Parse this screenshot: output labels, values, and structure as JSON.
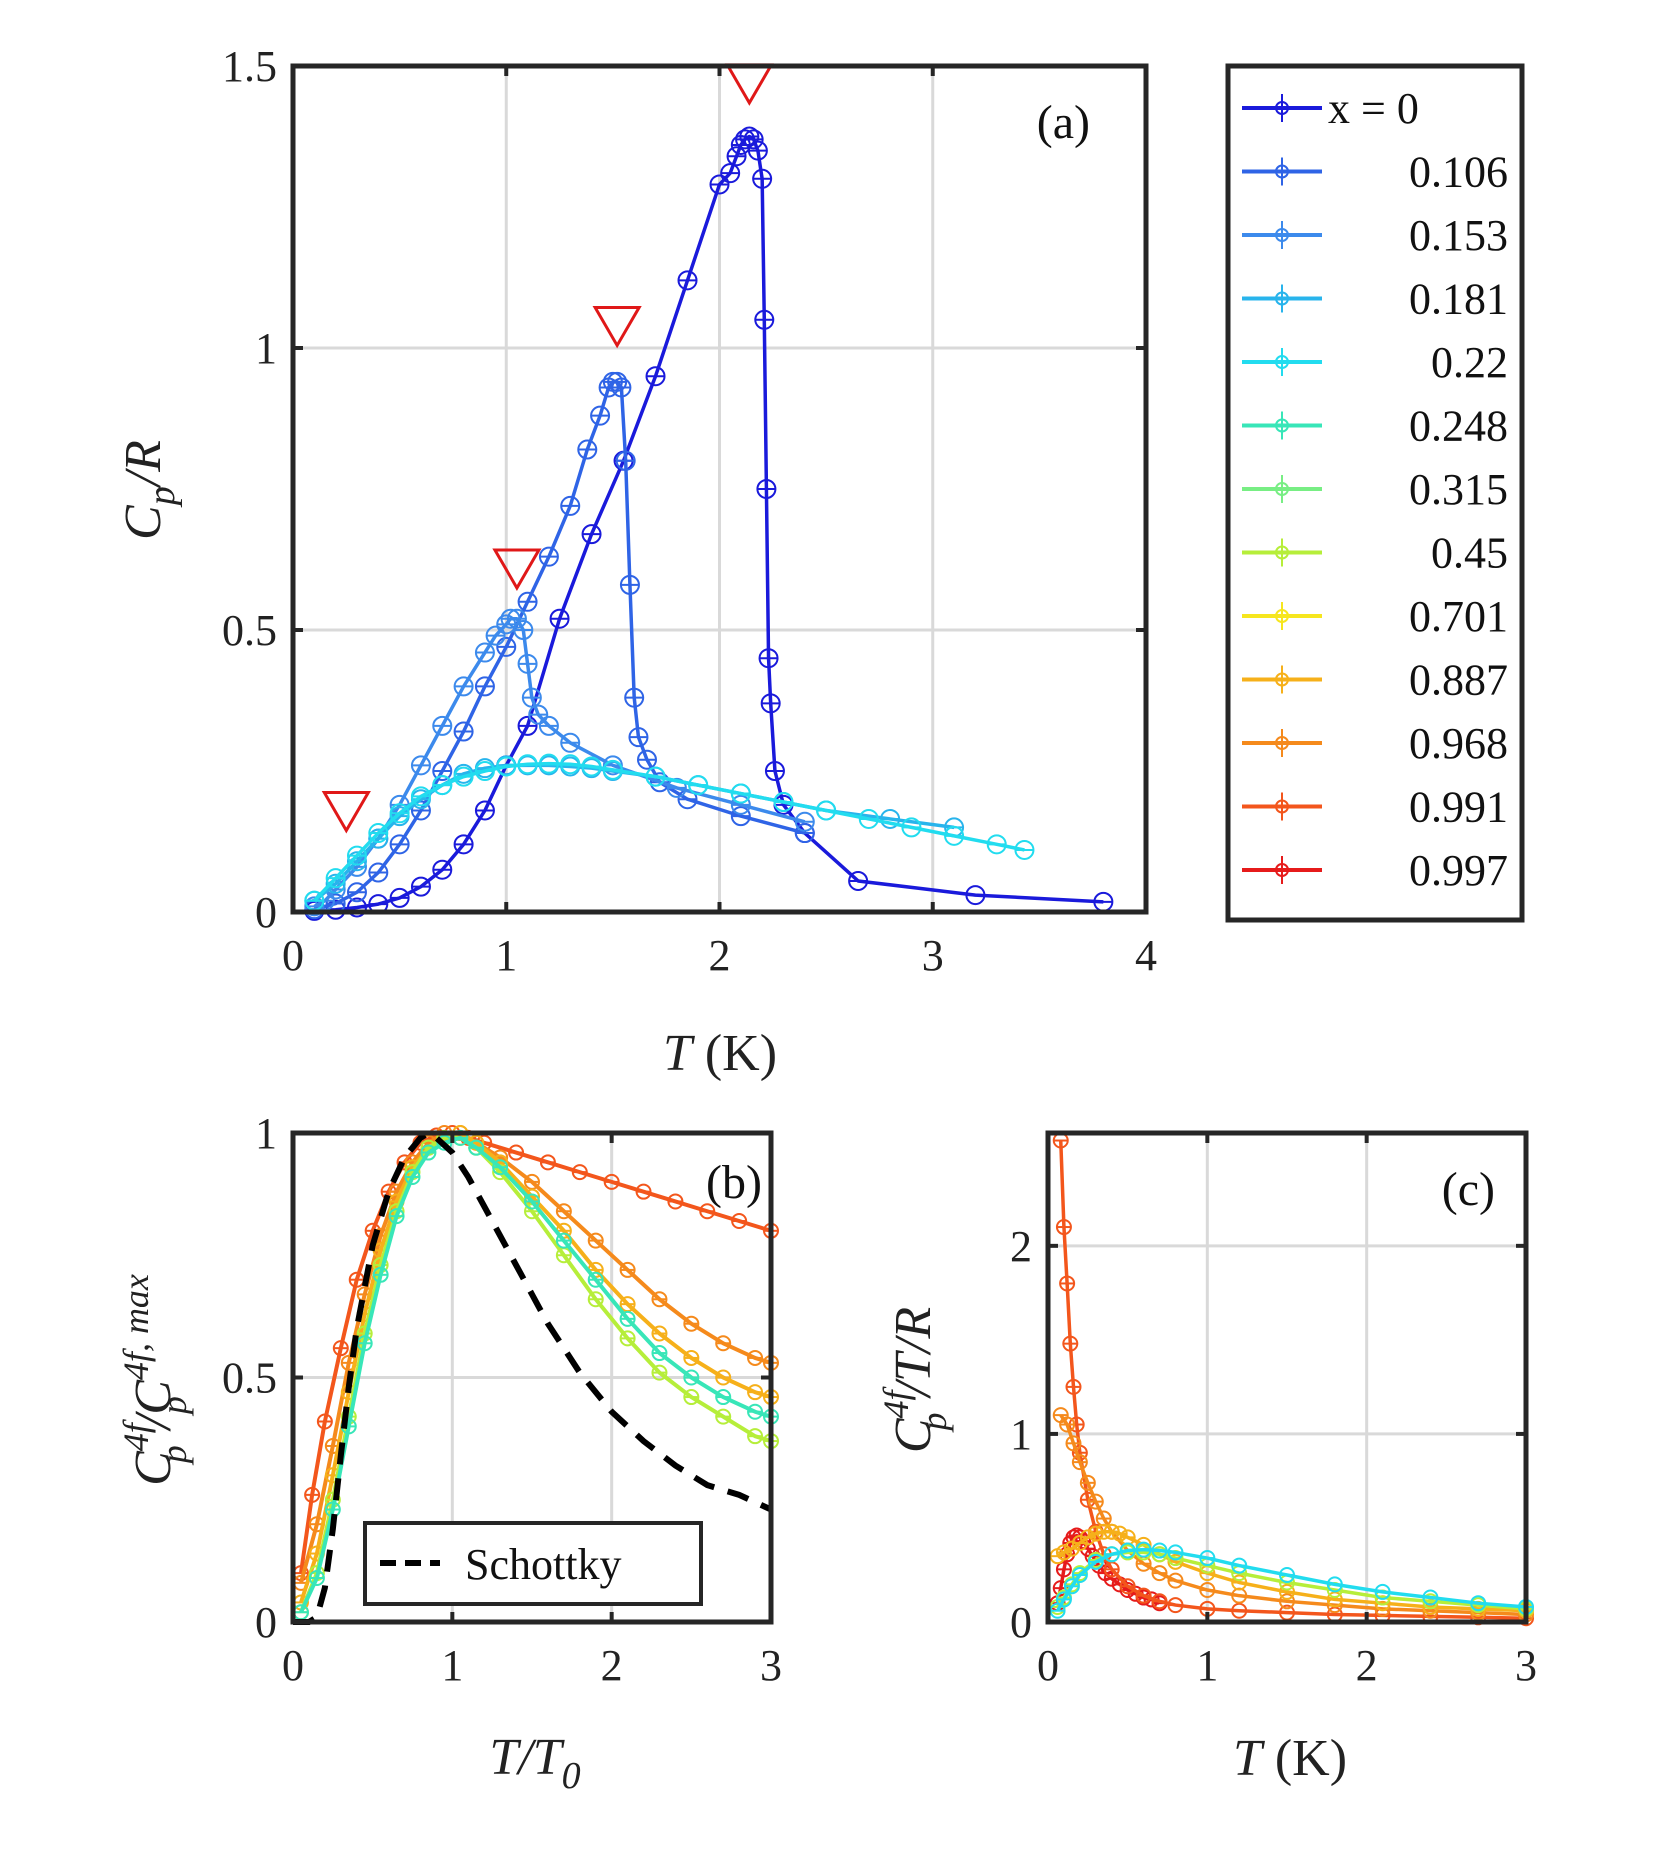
{
  "chart_data": [
    {
      "panel": "a",
      "type": "line",
      "tag": "(a)",
      "xlabel_var": "T",
      "xlabel_unit": " (K)",
      "ylabel_main": "C",
      "ylabel_sub": "p",
      "ylabel_rest": "/R",
      "xlim": [
        0,
        4
      ],
      "ylim": [
        0,
        1.5
      ],
      "xticks": [
        "0",
        "1",
        "2",
        "3",
        "4"
      ],
      "yticks": [
        "0",
        "0.5",
        "1",
        "1.5"
      ],
      "markers": [
        {
          "x": 0.25,
          "y": 0.18
        },
        {
          "x": 1.05,
          "y": 0.61
        },
        {
          "x": 1.52,
          "y": 1.04
        },
        {
          "x": 2.14,
          "y": 1.47
        }
      ],
      "series": [
        {
          "name": "x = 0",
          "color": "#1a1adb",
          "x": [
            0.1,
            0.2,
            0.3,
            0.4,
            0.5,
            0.6,
            0.7,
            0.8,
            0.9,
            1.0,
            1.1,
            1.25,
            1.4,
            1.55,
            1.7,
            1.85,
            2.0,
            2.05,
            2.08,
            2.1,
            2.12,
            2.14,
            2.16,
            2.18,
            2.2,
            2.21,
            2.22,
            2.23,
            2.24,
            2.26,
            2.3,
            2.4,
            2.65,
            3.2,
            3.8
          ],
          "y": [
            0.002,
            0.004,
            0.008,
            0.014,
            0.025,
            0.045,
            0.075,
            0.12,
            0.18,
            0.26,
            0.33,
            0.52,
            0.67,
            0.8,
            0.95,
            1.12,
            1.29,
            1.31,
            1.34,
            1.36,
            1.37,
            1.375,
            1.37,
            1.35,
            1.3,
            1.05,
            0.75,
            0.45,
            0.37,
            0.25,
            0.19,
            0.14,
            0.055,
            0.03,
            0.018
          ]
        },
        {
          "name": "0.106",
          "color": "#2f64e6",
          "x": [
            0.1,
            0.2,
            0.3,
            0.4,
            0.5,
            0.6,
            0.7,
            0.8,
            0.9,
            1.0,
            1.1,
            1.2,
            1.3,
            1.38,
            1.44,
            1.48,
            1.5,
            1.52,
            1.54,
            1.56,
            1.58,
            1.6,
            1.62,
            1.66,
            1.72,
            1.85,
            2.1,
            2.4
          ],
          "y": [
            0.005,
            0.015,
            0.035,
            0.07,
            0.12,
            0.18,
            0.25,
            0.32,
            0.4,
            0.47,
            0.55,
            0.63,
            0.72,
            0.82,
            0.88,
            0.93,
            0.94,
            0.94,
            0.93,
            0.8,
            0.58,
            0.38,
            0.31,
            0.27,
            0.23,
            0.2,
            0.17,
            0.14
          ]
        },
        {
          "name": "0.153",
          "color": "#3c8aec",
          "x": [
            0.1,
            0.15,
            0.2,
            0.3,
            0.4,
            0.5,
            0.6,
            0.7,
            0.8,
            0.9,
            0.95,
            1.0,
            1.02,
            1.05,
            1.08,
            1.1,
            1.12,
            1.15,
            1.2,
            1.3,
            1.5,
            1.8,
            2.1,
            2.4
          ],
          "y": [
            0.01,
            0.02,
            0.04,
            0.08,
            0.13,
            0.19,
            0.26,
            0.33,
            0.4,
            0.46,
            0.49,
            0.51,
            0.52,
            0.52,
            0.5,
            0.44,
            0.38,
            0.35,
            0.33,
            0.3,
            0.26,
            0.22,
            0.19,
            0.16
          ]
        },
        {
          "name": "0.181",
          "color": "#28b4ec",
          "x": [
            0.1,
            0.2,
            0.3,
            0.4,
            0.5,
            0.6,
            0.7,
            0.8,
            0.9,
            1.0,
            1.1,
            1.2,
            1.3,
            1.4,
            1.5,
            1.7,
            1.9,
            2.1,
            2.3,
            2.5,
            2.8,
            3.1
          ],
          "y": [
            0.02,
            0.05,
            0.09,
            0.13,
            0.17,
            0.2,
            0.225,
            0.245,
            0.255,
            0.26,
            0.26,
            0.26,
            0.258,
            0.255,
            0.25,
            0.24,
            0.225,
            0.21,
            0.195,
            0.18,
            0.165,
            0.15
          ]
        },
        {
          "name": "0.22",
          "color": "#22dcef",
          "x": [
            0.1,
            0.2,
            0.3,
            0.4,
            0.5,
            0.6,
            0.7,
            0.8,
            0.9,
            1.0,
            1.1,
            1.2,
            1.3,
            1.4,
            1.5,
            1.7,
            1.9,
            2.1,
            2.3,
            2.5,
            2.7,
            2.9,
            3.1,
            3.3,
            3.43
          ],
          "y": [
            0.02,
            0.06,
            0.1,
            0.14,
            0.175,
            0.205,
            0.225,
            0.24,
            0.25,
            0.258,
            0.262,
            0.263,
            0.262,
            0.258,
            0.252,
            0.24,
            0.225,
            0.21,
            0.195,
            0.18,
            0.165,
            0.15,
            0.135,
            0.12,
            0.11
          ]
        },
        {
          "name": "0.248",
          "color": "#38e6b8",
          "x": [],
          "y": []
        },
        {
          "name": "0.315",
          "color": "#78ee84",
          "x": [],
          "y": []
        },
        {
          "name": "0.45",
          "color": "#b6ee3a",
          "x": [],
          "y": []
        },
        {
          "name": "0.701",
          "color": "#f6e61e",
          "x": [],
          "y": []
        },
        {
          "name": "0.887",
          "color": "#f6b01a",
          "x": [],
          "y": []
        },
        {
          "name": "0.968",
          "color": "#f58a1c",
          "x": [],
          "y": []
        },
        {
          "name": "0.991",
          "color": "#f3561c",
          "x": [],
          "y": []
        },
        {
          "name": "0.997",
          "color": "#e61b1b",
          "x": [],
          "y": []
        }
      ]
    },
    {
      "panel": "b",
      "type": "line",
      "tag": "(b)",
      "xlabel_var": "T/T",
      "xlabel_sub": "0",
      "ylabel_c1": "C",
      "ylabel_sup1": "4f",
      "ylabel_sub1": "p",
      "ylabel_slash": "/C",
      "ylabel_sup2": "4f, max",
      "ylabel_sub2": "p",
      "xlim": [
        0,
        3
      ],
      "ylim": [
        0,
        1
      ],
      "xticks": [
        "0",
        "1",
        "2",
        "3"
      ],
      "yticks": [
        "0",
        "0.5",
        "1"
      ],
      "legend_label": "Schottky",
      "schottky": {
        "x": [
          0.0,
          0.1,
          0.15,
          0.2,
          0.25,
          0.3,
          0.35,
          0.4,
          0.5,
          0.6,
          0.7,
          0.8,
          0.85,
          0.9,
          1.0,
          1.1,
          1.2,
          1.3,
          1.4,
          1.5,
          1.6,
          1.8,
          2.0,
          2.2,
          2.4,
          2.6,
          2.8,
          3.0
        ],
        "y": [
          0.0,
          0.0,
          0.01,
          0.07,
          0.19,
          0.34,
          0.48,
          0.6,
          0.77,
          0.88,
          0.95,
          0.99,
          1.0,
          0.99,
          0.96,
          0.91,
          0.85,
          0.79,
          0.73,
          0.67,
          0.61,
          0.51,
          0.43,
          0.37,
          0.32,
          0.28,
          0.26,
          0.23
        ]
      },
      "series": [
        {
          "name": "0.991",
          "color": "#f3561c",
          "x": [
            0.05,
            0.12,
            0.2,
            0.3,
            0.4,
            0.5,
            0.6,
            0.7,
            0.8,
            0.9,
            1.0,
            1.1,
            1.2,
            1.4,
            1.6,
            1.8,
            2.0,
            2.2,
            2.4,
            2.6,
            2.8,
            3.0
          ],
          "y": [
            0.1,
            0.26,
            0.41,
            0.56,
            0.7,
            0.8,
            0.88,
            0.94,
            0.98,
            0.995,
            1.0,
            0.99,
            0.98,
            0.96,
            0.94,
            0.92,
            0.9,
            0.88,
            0.86,
            0.84,
            0.82,
            0.8
          ]
        },
        {
          "name": "0.968",
          "color": "#f58a1c",
          "x": [
            0.05,
            0.15,
            0.25,
            0.35,
            0.45,
            0.55,
            0.65,
            0.75,
            0.85,
            0.95,
            1.05,
            1.15,
            1.3,
            1.5,
            1.7,
            1.9,
            2.1,
            2.3,
            2.5,
            2.7,
            2.9,
            3.0
          ],
          "y": [
            0.08,
            0.2,
            0.36,
            0.53,
            0.67,
            0.79,
            0.88,
            0.94,
            0.98,
            1.0,
            1.0,
            0.98,
            0.95,
            0.9,
            0.84,
            0.78,
            0.72,
            0.66,
            0.61,
            0.57,
            0.54,
            0.53
          ]
        },
        {
          "name": "0.887",
          "color": "#f6b01a",
          "x": [
            0.05,
            0.15,
            0.25,
            0.35,
            0.45,
            0.55,
            0.65,
            0.75,
            0.85,
            0.95,
            1.05,
            1.15,
            1.3,
            1.5,
            1.7,
            1.9,
            2.1,
            2.3,
            2.5,
            2.7,
            2.9,
            3.0
          ],
          "y": [
            0.04,
            0.14,
            0.3,
            0.47,
            0.63,
            0.76,
            0.86,
            0.93,
            0.97,
            0.99,
            1.0,
            0.98,
            0.94,
            0.87,
            0.8,
            0.72,
            0.65,
            0.59,
            0.54,
            0.5,
            0.47,
            0.46
          ]
        },
        {
          "name": "0.45",
          "color": "#b6ee3a",
          "x": [
            0.05,
            0.15,
            0.25,
            0.35,
            0.45,
            0.55,
            0.65,
            0.75,
            0.85,
            0.95,
            1.05,
            1.15,
            1.3,
            1.5,
            1.7,
            1.9,
            2.1,
            2.3,
            2.5,
            2.7,
            2.9,
            3.0
          ],
          "y": [
            0.02,
            0.1,
            0.25,
            0.42,
            0.59,
            0.73,
            0.84,
            0.92,
            0.97,
            0.99,
            0.99,
            0.97,
            0.92,
            0.84,
            0.75,
            0.66,
            0.58,
            0.51,
            0.46,
            0.42,
            0.38,
            0.37
          ]
        },
        {
          "name": "0.248",
          "color": "#38e6b8",
          "x": [
            0.05,
            0.15,
            0.25,
            0.35,
            0.45,
            0.55,
            0.65,
            0.75,
            0.85,
            0.95,
            1.05,
            1.15,
            1.3,
            1.5,
            1.7,
            1.9,
            2.1,
            2.3,
            2.5,
            2.7,
            2.9,
            3.0
          ],
          "y": [
            0.02,
            0.09,
            0.23,
            0.4,
            0.57,
            0.71,
            0.83,
            0.91,
            0.96,
            0.98,
            0.99,
            0.97,
            0.93,
            0.86,
            0.78,
            0.7,
            0.62,
            0.55,
            0.5,
            0.46,
            0.43,
            0.42
          ]
        }
      ]
    },
    {
      "panel": "c",
      "type": "line",
      "tag": "(c)",
      "xlabel_var": "T",
      "xlabel_unit": " (K)",
      "ylabel_c": "C",
      "ylabel_sup": "4f",
      "ylabel_sub": "p",
      "ylabel_rest": "/T/R",
      "xlim": [
        0,
        3
      ],
      "ylim": [
        0,
        2.6
      ],
      "xticks": [
        "0",
        "1",
        "2",
        "3"
      ],
      "yticks": [
        "0",
        "1",
        "2"
      ],
      "series": [
        {
          "name": "0.997",
          "color": "#e61b1b",
          "x": [
            0.06,
            0.08,
            0.1,
            0.12,
            0.14,
            0.16,
            0.18,
            0.2,
            0.22,
            0.25,
            0.28,
            0.32,
            0.36,
            0.4,
            0.45,
            0.5,
            0.55,
            0.6,
            0.65,
            0.7
          ],
          "y": [
            0.1,
            0.18,
            0.28,
            0.36,
            0.42,
            0.45,
            0.46,
            0.45,
            0.43,
            0.39,
            0.35,
            0.3,
            0.26,
            0.23,
            0.2,
            0.17,
            0.15,
            0.13,
            0.12,
            0.1
          ]
        },
        {
          "name": "0.991",
          "color": "#f3561c",
          "x": [
            0.08,
            0.1,
            0.12,
            0.14,
            0.16,
            0.18,
            0.2,
            0.25,
            0.3,
            0.35,
            0.4,
            0.5,
            0.6,
            0.7,
            0.8,
            1.0,
            1.2,
            1.5,
            1.8,
            2.1,
            2.4,
            2.7,
            3.0
          ],
          "y": [
            2.56,
            2.1,
            1.8,
            1.48,
            1.25,
            1.05,
            0.9,
            0.65,
            0.48,
            0.36,
            0.28,
            0.19,
            0.14,
            0.11,
            0.09,
            0.07,
            0.06,
            0.05,
            0.04,
            0.035,
            0.03,
            0.025,
            0.02
          ]
        },
        {
          "name": "0.968",
          "color": "#f58a1c",
          "x": [
            0.08,
            0.12,
            0.16,
            0.2,
            0.25,
            0.3,
            0.35,
            0.4,
            0.5,
            0.6,
            0.7,
            0.8,
            1.0,
            1.2,
            1.5,
            1.8,
            2.1,
            2.4,
            2.7,
            3.0
          ],
          "y": [
            1.1,
            1.05,
            0.95,
            0.85,
            0.74,
            0.64,
            0.55,
            0.48,
            0.38,
            0.31,
            0.26,
            0.22,
            0.17,
            0.14,
            0.11,
            0.09,
            0.07,
            0.06,
            0.05,
            0.04
          ]
        },
        {
          "name": "0.887",
          "color": "#f6b01a",
          "x": [
            0.06,
            0.1,
            0.15,
            0.2,
            0.25,
            0.3,
            0.35,
            0.4,
            0.45,
            0.5,
            0.6,
            0.7,
            0.8,
            1.0,
            1.2,
            1.5,
            1.8,
            2.1,
            2.4,
            2.7,
            3.0
          ],
          "y": [
            0.35,
            0.37,
            0.39,
            0.42,
            0.45,
            0.47,
            0.48,
            0.48,
            0.47,
            0.45,
            0.41,
            0.36,
            0.32,
            0.26,
            0.21,
            0.16,
            0.12,
            0.1,
            0.08,
            0.07,
            0.06
          ]
        },
        {
          "name": "0.45",
          "color": "#b6ee3a",
          "x": [
            0.06,
            0.1,
            0.15,
            0.2,
            0.3,
            0.4,
            0.5,
            0.6,
            0.7,
            0.8,
            1.0,
            1.2,
            1.5,
            1.8,
            2.1,
            2.4,
            2.7,
            3.0
          ],
          "y": [
            0.08,
            0.13,
            0.2,
            0.26,
            0.33,
            0.36,
            0.37,
            0.37,
            0.36,
            0.34,
            0.3,
            0.26,
            0.21,
            0.17,
            0.13,
            0.11,
            0.09,
            0.07
          ]
        },
        {
          "name": "0.22",
          "color": "#22dcef",
          "x": [
            0.06,
            0.1,
            0.15,
            0.2,
            0.3,
            0.4,
            0.5,
            0.6,
            0.7,
            0.8,
            1.0,
            1.2,
            1.5,
            1.8,
            2.1,
            2.4,
            2.7,
            3.0
          ],
          "y": [
            0.06,
            0.12,
            0.19,
            0.25,
            0.32,
            0.36,
            0.38,
            0.385,
            0.38,
            0.37,
            0.34,
            0.3,
            0.25,
            0.2,
            0.16,
            0.13,
            0.1,
            0.08
          ]
        }
      ]
    }
  ],
  "legend": {
    "entries": [
      "x = 0",
      "0.106",
      "0.153",
      "0.181",
      "0.22",
      "0.248",
      "0.315",
      "0.45",
      "0.701",
      "0.887",
      "0.968",
      "0.991",
      "0.997"
    ]
  }
}
